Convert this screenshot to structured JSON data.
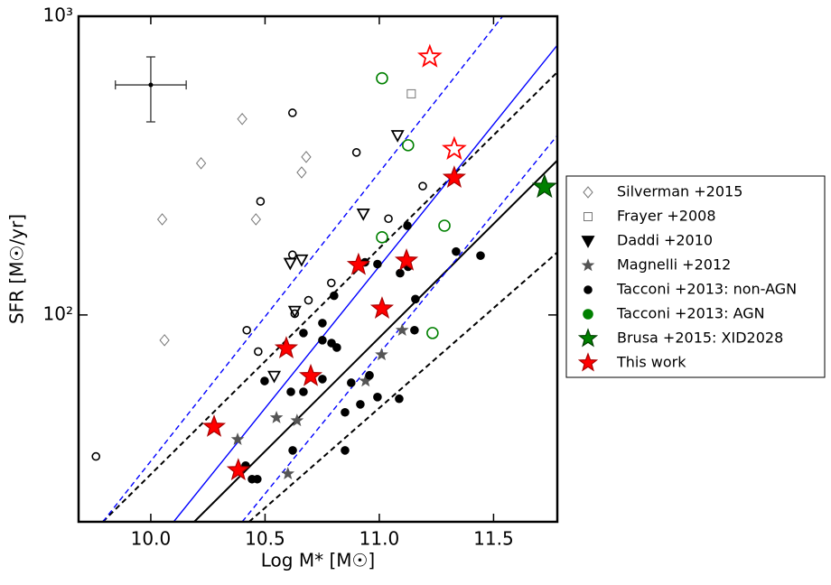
{
  "chart_data": {
    "type": "scatter",
    "xlabel": "Log M* [M☉]",
    "ylabel": "SFR [M☉/yr]",
    "xlim": [
      9.684,
      11.779
    ],
    "ylim": [
      20.3,
      1000
    ],
    "log_y": true,
    "xticks": [
      {
        "value": 10,
        "label": "10.0"
      },
      10.5,
      {
        "value": 11,
        "label": "11.0"
      },
      11.5
    ],
    "yticks": [
      {
        "value": 100,
        "label": "10²"
      },
      {
        "value": 1000,
        "label": "10³"
      }
    ],
    "legend": "right",
    "lines": [
      {
        "color": "#000000",
        "style": "solid",
        "x": [
          10.19,
          11.779
        ],
        "values": [
          20.3,
          329
        ]
      },
      {
        "color": "#000000",
        "style": "dashed",
        "x": [
          9.79,
          11.779
        ],
        "values": [
          20.3,
          650
        ]
      },
      {
        "color": "#000000",
        "style": "dashed",
        "x": [
          10.43,
          11.779
        ],
        "values": [
          20.3,
          162
        ]
      },
      {
        "color": "#0000ff",
        "style": "solid",
        "x": [
          10.1,
          11.779
        ],
        "values": [
          20.3,
          800
        ]
      },
      {
        "color": "#0000ff",
        "style": "dashed",
        "x": [
          9.79,
          11.54
        ],
        "values": [
          20.3,
          1000
        ]
      },
      {
        "color": "#0000ff",
        "style": "dashed",
        "x": [
          10.4,
          11.779
        ],
        "values": [
          20.3,
          399
        ]
      }
    ],
    "error_bar": {
      "x": 10.0,
      "y": 589,
      "xerr": 0.155,
      "y_low": 443,
      "y_high": 731
    },
    "series": [
      {
        "name": "Silverman +2015",
        "color": "#777777",
        "marker": "diamond",
        "filled": false,
        "x": [
          10.4,
          10.22,
          10.05,
          10.68,
          10.66,
          10.46,
          10.06
        ],
        "values": [
          453,
          322,
          209,
          338,
          300,
          209,
          82.3
        ]
      },
      {
        "name": "Frayer +2008",
        "color": "#777777",
        "marker": "square",
        "filled": false,
        "x": [
          11.14
        ],
        "values": [
          550
        ]
      },
      {
        "name": "Daddi +2010",
        "color": "#000000",
        "marker": "triangle",
        "filled": false,
        "x": [
          11.08,
          10.93,
          10.61,
          10.66,
          10.63,
          10.54
        ],
        "values": [
          399,
          218,
          149,
          153,
          103,
          62.4
        ]
      },
      {
        "name": "Magnelli +2012",
        "color": "#555555",
        "marker": "star",
        "filled": true,
        "size": 6,
        "x": [
          10.38,
          10.55,
          10.64,
          10.94,
          11.01,
          11.1,
          10.6
        ],
        "values": [
          38.3,
          45.3,
          44.3,
          60.1,
          73.6,
          88.9,
          29.4
        ]
      },
      {
        "name": "Tacconi +2013: non-AGN",
        "color": "#000000",
        "marker": "circle",
        "filled": true,
        "size": 4,
        "x": [
          10.415,
          10.443,
          10.466,
          10.498,
          10.613,
          10.668,
          10.668,
          10.751,
          10.751,
          10.751,
          10.791,
          10.814,
          10.802,
          10.85,
          10.877,
          10.917,
          10.957,
          10.992,
          10.992,
          11.087,
          11.091,
          11.123,
          11.126,
          11.154,
          11.158,
          11.336,
          11.443,
          10.621,
          10.85,
          10.937
        ],
        "values": [
          31.3,
          28.2,
          28.2,
          60.1,
          55.3,
          55.3,
          87.0,
          93.9,
          82.3,
          61.0,
          80.5,
          77.8,
          116,
          47.2,
          59.3,
          50.2,
          62.8,
          148,
          53.1,
          52.4,
          138,
          199,
          145,
          88.9,
          113,
          163,
          158,
          35.2,
          35.2,
          150
        ]
      },
      {
        "color": "#000000",
        "marker": "circle",
        "filled": false,
        "size": 4,
        "x": [
          9.76,
          10.62,
          10.9,
          10.48,
          10.62,
          11.04,
          10.79,
          11.19,
          10.69,
          10.42,
          10.63,
          10.47
        ],
        "values": [
          33.6,
          475,
          350,
          240,
          159,
          210,
          128,
          270,
          112,
          88.9,
          101,
          75.4
        ]
      },
      {
        "name": "Tacconi +2013: AGN",
        "color": "#008000",
        "marker": "circle",
        "filled": false,
        "size": 6,
        "x": [
          11.012,
          11.126,
          11.012,
          11.285,
          11.233
        ],
        "values": [
          620,
          370,
          182,
          199,
          87.0
        ]
      },
      {
        "name": "Brusa +2015: XID2028",
        "color": "#008000",
        "marker": "star",
        "filled": true,
        "size": 13,
        "x": [
          11.723
        ],
        "values": [
          268
        ]
      },
      {
        "name": "This work",
        "color": "#ff0000",
        "marker": "star",
        "filled": true,
        "size": 12,
        "x": [
          11.328,
          10.909,
          11.119,
          10.593,
          11.012,
          10.7,
          10.277,
          10.383
        ],
        "values": [
          288,
          147,
          152,
          77.3,
          105,
          62.4,
          42.2,
          30.2
        ]
      },
      {
        "color": "#ff0000",
        "marker": "star",
        "filled": false,
        "size": 12,
        "x": [
          11.221,
          11.328
        ],
        "values": [
          731,
          359
        ]
      }
    ]
  }
}
